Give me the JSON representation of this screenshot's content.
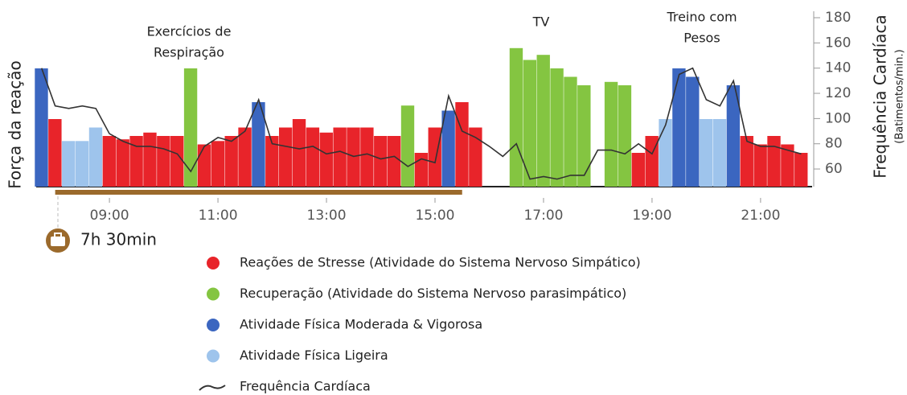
{
  "chart_data": {
    "type": "bar",
    "ylabel": "Força da reação",
    "y2label": "Frequência Cardíaca",
    "y2sublabel": "(Batimentos/min.)",
    "ylim": [
      0,
      100
    ],
    "y2lim": [
      46,
      180
    ],
    "y2ticks": [
      60,
      80,
      100,
      120,
      140,
      160,
      180
    ],
    "xlim": [
      7.65,
      21.95
    ],
    "xticks": [
      {
        "value": 9,
        "label": "09:00"
      },
      {
        "value": 11,
        "label": "11:00"
      },
      {
        "value": 13,
        "label": "13:00"
      },
      {
        "value": 15,
        "label": "15:00"
      },
      {
        "value": 17,
        "label": "17:00"
      },
      {
        "value": 19,
        "label": "19:00"
      },
      {
        "value": 21,
        "label": "21:00"
      }
    ],
    "x": [
      7.75,
      8,
      8.25,
      8.5,
      8.75,
      9,
      9.25,
      9.5,
      9.75,
      10,
      10.25,
      10.5,
      10.75,
      11,
      11.25,
      11.5,
      11.75,
      12,
      12.25,
      12.5,
      12.75,
      13,
      13.25,
      13.5,
      13.75,
      14,
      14.25,
      14.5,
      14.75,
      15,
      15.25,
      15.5,
      15.75,
      16,
      16.25,
      16.5,
      16.75,
      17,
      17.25,
      17.5,
      17.75,
      18,
      18.25,
      18.5,
      18.75,
      19,
      19.25,
      19.5,
      19.75,
      20,
      20.25,
      20.5,
      20.75,
      21,
      21.25,
      21.5,
      21.75
    ],
    "annotations": [
      [
        "Exercícios de",
        "Respiração"
      ],
      [
        "TV"
      ],
      [
        "Treino com",
        "Pesos"
      ]
    ],
    "work_start": 8.0,
    "work_end": 15.5,
    "work_label": "7h 30min",
    "series": [
      {
        "name": "Reações de Stresse (Atividade do Sistema Nervoso Simpático)",
        "color": "#e8242a",
        "values": [
          null,
          40,
          null,
          null,
          null,
          30,
          28,
          30,
          32,
          30,
          30,
          null,
          25,
          27,
          30,
          35,
          null,
          30,
          35,
          40,
          35,
          32,
          35,
          35,
          35,
          30,
          30,
          null,
          20,
          35,
          null,
          50,
          35,
          null,
          null,
          null,
          null,
          null,
          null,
          null,
          null,
          null,
          null,
          null,
          20,
          30,
          null,
          null,
          null,
          null,
          null,
          null,
          30,
          25,
          30,
          25,
          20
        ]
      },
      {
        "name": "Recuperação (Atividade do Sistema Nervoso parasimpático)",
        "color": "#84c541",
        "values": [
          null,
          null,
          null,
          null,
          null,
          null,
          null,
          null,
          null,
          null,
          null,
          70,
          null,
          null,
          null,
          null,
          null,
          null,
          null,
          null,
          null,
          null,
          null,
          null,
          null,
          null,
          null,
          48,
          null,
          null,
          null,
          null,
          null,
          null,
          null,
          82,
          75,
          78,
          70,
          65,
          60,
          null,
          62,
          60,
          null,
          null,
          null,
          null,
          null,
          null,
          null,
          null,
          null,
          null,
          null,
          null,
          null
        ]
      },
      {
        "name": "Atividade Física Moderada & Vigorosa",
        "color": "#3b66c0",
        "values": [
          70,
          null,
          null,
          null,
          null,
          null,
          null,
          null,
          null,
          null,
          null,
          null,
          null,
          null,
          null,
          null,
          50,
          null,
          null,
          null,
          null,
          null,
          null,
          null,
          null,
          null,
          null,
          null,
          null,
          null,
          45,
          null,
          null,
          null,
          null,
          null,
          null,
          null,
          null,
          null,
          null,
          null,
          null,
          null,
          null,
          null,
          null,
          70,
          65,
          null,
          null,
          60,
          null,
          null,
          null,
          null,
          null
        ]
      },
      {
        "name": "Atividade Física Ligeira",
        "color": "#9ec4ec",
        "values": [
          null,
          null,
          27,
          27,
          35,
          null,
          null,
          null,
          null,
          null,
          null,
          null,
          null,
          null,
          null,
          null,
          null,
          null,
          null,
          null,
          null,
          null,
          null,
          null,
          null,
          null,
          null,
          null,
          null,
          null,
          null,
          null,
          null,
          null,
          null,
          null,
          null,
          null,
          null,
          null,
          null,
          null,
          null,
          null,
          null,
          null,
          40,
          null,
          null,
          40,
          40,
          null,
          null,
          null,
          null,
          null,
          null
        ]
      },
      {
        "name": "Frequência Cardíaca",
        "color": "#333333",
        "axis": "y2",
        "values": [
          140,
          110,
          108,
          110,
          108,
          88,
          82,
          78,
          78,
          76,
          72,
          58,
          78,
          85,
          82,
          90,
          115,
          80,
          78,
          76,
          78,
          72,
          74,
          70,
          72,
          68,
          70,
          62,
          68,
          65,
          118,
          90,
          85,
          78,
          70,
          80,
          52,
          54,
          52,
          55,
          55,
          75,
          75,
          72,
          80,
          72,
          95,
          135,
          140,
          115,
          110,
          130,
          82,
          78,
          78,
          75,
          72
        ]
      }
    ]
  }
}
